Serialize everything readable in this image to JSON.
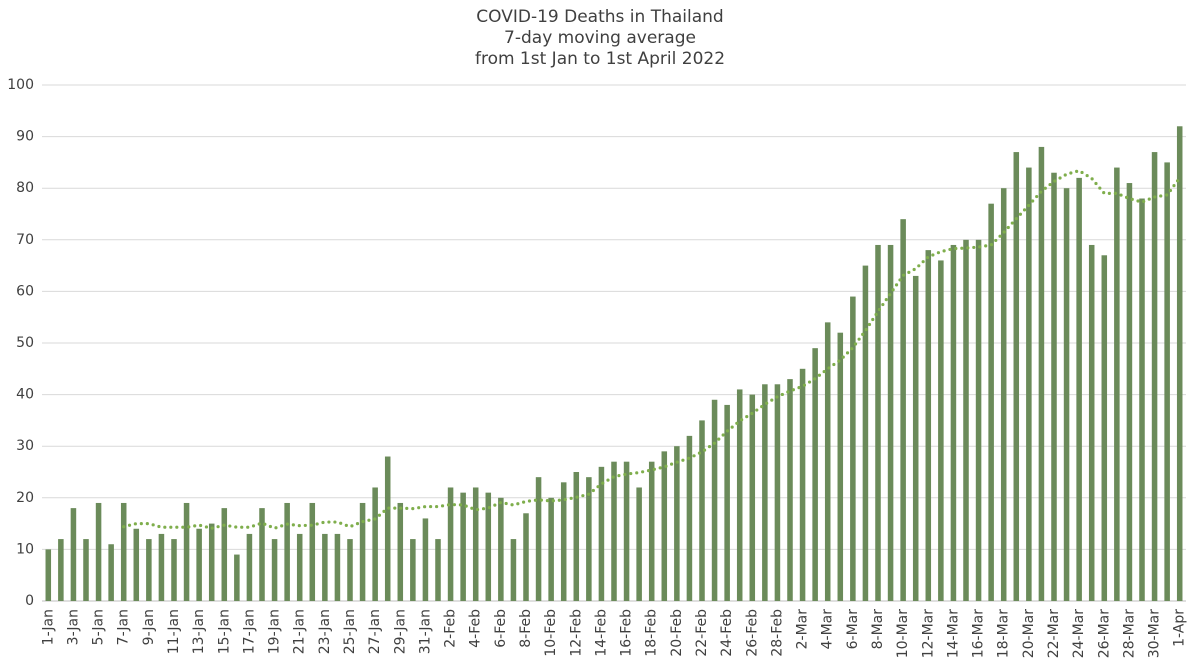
{
  "chart_data": {
    "type": "bar",
    "title": [
      "COVID-19 Deaths in Thailand",
      "7-day moving average",
      "from 1st Jan to 1st April  2022"
    ],
    "categories": [
      "1-Jan",
      null,
      "3-Jan",
      null,
      "5-Jan",
      null,
      "7-Jan",
      null,
      "9-Jan",
      null,
      "11-Jan",
      null,
      "13-Jan",
      null,
      "15-Jan",
      null,
      "17-Jan",
      null,
      "19-Jan",
      null,
      "21-Jan",
      null,
      "23-Jan",
      null,
      "25-Jan",
      null,
      "27-Jan",
      null,
      "29-Jan",
      null,
      "31-Jan",
      null,
      "2-Feb",
      null,
      "4-Feb",
      null,
      "6-Feb",
      null,
      "8-Feb",
      null,
      "10-Feb",
      null,
      "12-Feb",
      null,
      "14-Feb",
      null,
      "16-Feb",
      null,
      "18-Feb",
      null,
      "20-Feb",
      null,
      "22-Feb",
      null,
      "24-Feb",
      null,
      "26-Feb",
      null,
      "28-Feb",
      null,
      "2-Mar",
      null,
      "4-Mar",
      null,
      "6-Mar",
      null,
      "8-Mar",
      null,
      "10-Mar",
      null,
      "12-Mar",
      null,
      "14-Mar",
      null,
      "16-Mar",
      null,
      "18-Mar",
      null,
      "20-Mar",
      null,
      "22-Mar",
      null,
      "24-Mar",
      null,
      "26-Mar",
      null,
      "28-Mar",
      null,
      "30-Mar",
      null,
      "1-Apr"
    ],
    "series": [
      {
        "color": "#6b8b5a",
        "values": [
          10,
          12,
          18,
          12,
          19,
          11,
          19,
          14,
          12,
          13,
          12,
          19,
          14,
          15,
          18,
          9,
          13,
          18,
          12,
          19,
          13,
          19,
          13,
          13,
          12,
          19,
          22,
          28,
          19,
          12,
          16,
          12,
          22,
          21,
          22,
          21,
          20,
          12,
          17,
          24,
          20,
          23,
          25,
          24,
          26,
          27,
          27,
          22,
          27,
          29,
          30,
          32,
          35,
          39,
          38,
          41,
          40,
          42,
          42,
          43,
          45,
          49,
          54,
          52,
          59,
          65,
          69,
          69,
          74,
          63,
          68,
          66,
          69,
          70,
          70,
          77,
          80,
          87,
          84,
          88,
          83,
          80,
          82,
          69,
          67,
          84,
          81,
          78,
          87,
          85,
          92
        ]
      },
      {
        "type": "line",
        "style": "dotted",
        "color": "#7fae4c",
        "values": [
          null,
          null,
          null,
          null,
          null,
          null,
          14.4,
          15.0,
          15.0,
          14.3,
          14.3,
          14.3,
          14.7,
          14.1,
          14.7,
          14.3,
          14.3,
          15.1,
          14.1,
          14.9,
          14.6,
          14.7,
          15.3,
          15.3,
          14.4,
          15.4,
          15.9,
          18.0,
          18.0,
          17.9,
          18.3,
          18.3,
          18.7,
          18.6,
          17.7,
          18.0,
          19.1,
          18.6,
          19.3,
          19.6,
          19.4,
          19.6,
          20.1,
          20.7,
          22.7,
          24.1,
          24.6,
          24.9,
          25.4,
          26.0,
          26.9,
          27.7,
          28.9,
          30.6,
          32.9,
          34.9,
          36.4,
          38.1,
          39.6,
          40.7,
          41.6,
          43.1,
          45.0,
          46.7,
          49.1,
          52.4,
          56.1,
          59.6,
          63.1,
          64.4,
          66.7,
          67.7,
          68.3,
          68.4,
          68.6,
          69.0,
          71.4,
          74.1,
          76.7,
          79.4,
          81.3,
          82.7,
          83.4,
          81.9,
          79.0,
          79.0,
          78.0,
          77.3,
          78.3,
          78.7,
          82.0
        ]
      }
    ],
    "ylim": [
      0,
      100
    ],
    "yticks": [
      0,
      10,
      20,
      30,
      40,
      50,
      60,
      70,
      80,
      90,
      100
    ],
    "grid": true
  }
}
